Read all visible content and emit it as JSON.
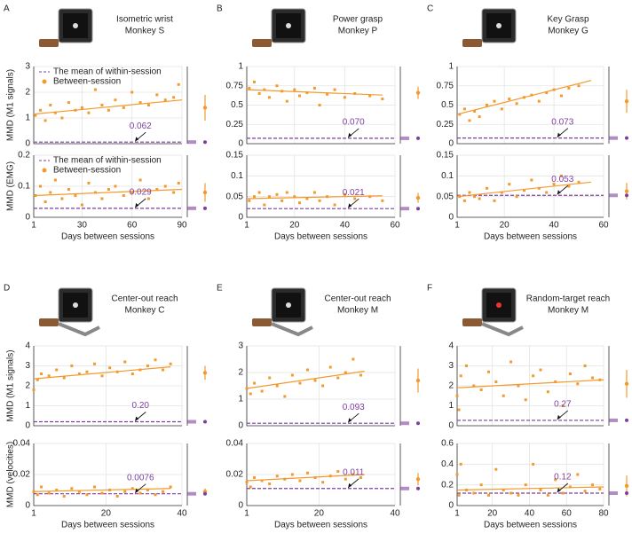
{
  "panels": [
    {
      "letter": "A",
      "title": "Isometric wrist",
      "subtitle": "Monkey S"
    },
    {
      "letter": "B",
      "title": "Power grasp",
      "subtitle": "Monkey P"
    },
    {
      "letter": "C",
      "title": "Key Grasp",
      "subtitle": "Monkey G"
    },
    {
      "letter": "D",
      "title": "Center-out reach",
      "subtitle": "Monkey C"
    },
    {
      "letter": "E",
      "title": "Center-out reach",
      "subtitle": "Monkey M"
    },
    {
      "letter": "F",
      "title": "Random-target reach",
      "subtitle": "Monkey M"
    }
  ],
  "chart_data": [
    {
      "type": "scatter",
      "ylabel": "MMD (M1 signals)",
      "legend": [
        "The mean of within-session",
        "Between-session"
      ],
      "color": "#f39a2e",
      "within_color": "#7d3f9e",
      "xlim": [
        1,
        90
      ],
      "xticks": [
        1,
        30,
        60,
        90
      ],
      "ylim": [
        0,
        3
      ],
      "yticks": [
        0,
        1,
        2,
        3
      ],
      "x": [
        2,
        5,
        8,
        11,
        14,
        18,
        22,
        26,
        30,
        34,
        38,
        42,
        46,
        50,
        55,
        60,
        65,
        70,
        75,
        80,
        85,
        88
      ],
      "y": [
        1.1,
        1.3,
        0.9,
        1.5,
        1.2,
        1.0,
        1.6,
        1.3,
        1.4,
        1.2,
        2.1,
        1.5,
        1.3,
        1.7,
        1.4,
        2.0,
        1.6,
        1.5,
        1.9,
        1.7,
        1.8,
        2.3
      ],
      "fit_x": [
        1,
        90
      ],
      "fit_y": [
        1.15,
        1.7
      ],
      "within": 0.062,
      "within_label": "0.062",
      "between_mean": 1.4,
      "between_sd": 0.5
    },
    {
      "type": "scatter",
      "ylabel": "MMD (EMG)",
      "xlabel": "Days between sessions",
      "legend": [
        "The mean of within-session",
        "Between-session"
      ],
      "color": "#f39a2e",
      "within_color": "#7d3f9e",
      "xlim": [
        1,
        90
      ],
      "xticks": [
        1,
        30,
        60,
        90
      ],
      "ylim": [
        0,
        0.2
      ],
      "yticks": [
        0,
        0.1,
        0.2
      ],
      "x": [
        2,
        5,
        8,
        11,
        14,
        18,
        22,
        26,
        30,
        34,
        38,
        42,
        46,
        50,
        55,
        60,
        65,
        70,
        75,
        80,
        85,
        88
      ],
      "y": [
        0.07,
        0.1,
        0.05,
        0.08,
        0.12,
        0.06,
        0.09,
        0.07,
        0.04,
        0.11,
        0.08,
        0.06,
        0.09,
        0.1,
        0.07,
        0.08,
        0.12,
        0.06,
        0.09,
        0.1,
        0.08,
        0.11
      ],
      "fit_x": [
        1,
        90
      ],
      "fit_y": [
        0.07,
        0.09
      ],
      "within": 0.029,
      "within_label": "0.029",
      "between_mean": 0.08,
      "between_sd": 0.03
    },
    {
      "type": "scatter",
      "color": "#f39a2e",
      "within_color": "#7d3f9e",
      "xlim": [
        1,
        60
      ],
      "xticks": [
        1,
        20,
        40,
        60
      ],
      "ylim": [
        0,
        1
      ],
      "yticks": [
        0,
        0.25,
        0.5,
        0.75,
        1
      ],
      "x": [
        2,
        4,
        6,
        8,
        10,
        13,
        15,
        17,
        20,
        22,
        25,
        28,
        30,
        33,
        36,
        40,
        44,
        50,
        55
      ],
      "y": [
        0.72,
        0.8,
        0.65,
        0.7,
        0.6,
        0.75,
        0.68,
        0.55,
        0.7,
        0.62,
        0.66,
        0.72,
        0.5,
        0.64,
        0.7,
        0.6,
        0.65,
        0.62,
        0.58
      ],
      "fit_x": [
        1,
        55
      ],
      "fit_y": [
        0.7,
        0.63
      ],
      "within": 0.07,
      "within_label": "0.070",
      "between_mean": 0.66,
      "between_sd": 0.08
    },
    {
      "type": "scatter",
      "xlabel": "Days between sessions",
      "color": "#f39a2e",
      "within_color": "#7d3f9e",
      "xlim": [
        1,
        60
      ],
      "xticks": [
        1,
        20,
        40,
        60
      ],
      "ylim": [
        0,
        0.15
      ],
      "yticks": [
        0,
        0.05,
        0.1,
        0.15
      ],
      "x": [
        2,
        4,
        6,
        8,
        10,
        13,
        15,
        17,
        20,
        22,
        25,
        28,
        30,
        33,
        36,
        40,
        44,
        50,
        55
      ],
      "y": [
        0.04,
        0.05,
        0.06,
        0.03,
        0.05,
        0.055,
        0.04,
        0.06,
        0.05,
        0.035,
        0.045,
        0.06,
        0.04,
        0.05,
        0.03,
        0.055,
        0.045,
        0.05,
        0.04
      ],
      "fit_x": [
        1,
        55
      ],
      "fit_y": [
        0.045,
        0.052
      ],
      "within": 0.021,
      "within_label": "0.021",
      "between_mean": 0.047,
      "between_sd": 0.012
    },
    {
      "type": "scatter",
      "color": "#f39a2e",
      "within_color": "#7d3f9e",
      "xlim": [
        1,
        60
      ],
      "xticks": [
        1,
        20,
        40,
        60
      ],
      "ylim": [
        0,
        1
      ],
      "yticks": [
        0,
        0.25,
        0.5,
        0.75,
        1
      ],
      "x": [
        2,
        4,
        6,
        8,
        10,
        13,
        16,
        19,
        22,
        25,
        28,
        31,
        34,
        37,
        40,
        43,
        46,
        50
      ],
      "y": [
        0.38,
        0.45,
        0.3,
        0.42,
        0.35,
        0.5,
        0.55,
        0.45,
        0.58,
        0.52,
        0.6,
        0.63,
        0.55,
        0.66,
        0.7,
        0.62,
        0.72,
        0.75
      ],
      "fit_x": [
        1,
        55
      ],
      "fit_y": [
        0.38,
        0.82
      ],
      "within": 0.073,
      "within_label": "0.073",
      "between_mean": 0.55,
      "between_sd": 0.15
    },
    {
      "type": "scatter",
      "xlabel": "Days between sessions",
      "color": "#f39a2e",
      "within_color": "#7d3f9e",
      "xlim": [
        1,
        60
      ],
      "xticks": [
        1,
        20,
        40,
        60
      ],
      "ylim": [
        0,
        0.15
      ],
      "yticks": [
        0,
        0.05,
        0.1,
        0.15
      ],
      "x": [
        2,
        4,
        6,
        8,
        10,
        13,
        16,
        19,
        22,
        25,
        28,
        31,
        34,
        37,
        40,
        43,
        46,
        50
      ],
      "y": [
        0.05,
        0.04,
        0.06,
        0.05,
        0.045,
        0.07,
        0.04,
        0.06,
        0.08,
        0.05,
        0.065,
        0.09,
        0.07,
        0.06,
        0.08,
        0.1,
        0.075,
        0.085
      ],
      "fit_x": [
        1,
        55
      ],
      "fit_y": [
        0.05,
        0.085
      ],
      "within": 0.053,
      "within_label": "0.053",
      "between_mean": 0.063,
      "between_sd": 0.02
    },
    {
      "type": "scatter",
      "ylabel": "MMD (M1 signals)",
      "color": "#f39a2e",
      "within_color": "#7d3f9e",
      "xlim": [
        1,
        40
      ],
      "xticks": [
        1,
        20,
        40
      ],
      "ylim": [
        0,
        4
      ],
      "yticks": [
        0,
        1,
        2,
        3,
        4
      ],
      "x": [
        1,
        2,
        3,
        5,
        7,
        9,
        11,
        13,
        15,
        17,
        19,
        21,
        23,
        25,
        27,
        29,
        31,
        33,
        35,
        37
      ],
      "y": [
        1.8,
        2.3,
        2.6,
        2.5,
        2.8,
        2.4,
        3.0,
        2.6,
        2.7,
        3.1,
        2.5,
        2.9,
        2.7,
        3.2,
        2.6,
        2.8,
        3.0,
        3.3,
        2.8,
        3.1
      ],
      "fit_x": [
        1,
        37
      ],
      "fit_y": [
        2.35,
        2.95
      ],
      "within": 0.2,
      "within_label": "0.20",
      "between_mean": 2.65,
      "between_sd": 0.35
    },
    {
      "type": "scatter",
      "ylabel": "MMD (velocities)",
      "xlabel": "Days between sessions",
      "color": "#f39a2e",
      "within_color": "#7d3f9e",
      "xlim": [
        1,
        40
      ],
      "xticks": [
        1,
        20,
        40
      ],
      "ylim": [
        0,
        0.04
      ],
      "yticks": [
        0,
        0.02,
        0.04
      ],
      "x": [
        1,
        2,
        3,
        5,
        7,
        9,
        11,
        13,
        15,
        17,
        19,
        21,
        23,
        25,
        27,
        29,
        31,
        33,
        35,
        37
      ],
      "y": [
        0.009,
        0.007,
        0.012,
        0.008,
        0.01,
        0.006,
        0.011,
        0.009,
        0.007,
        0.012,
        0.008,
        0.01,
        0.006,
        0.009,
        0.011,
        0.008,
        0.01,
        0.007,
        0.009,
        0.012
      ],
      "fit_x": [
        1,
        37
      ],
      "fit_y": [
        0.009,
        0.011
      ],
      "within": 0.0076,
      "within_label": "0.0076",
      "between_mean": 0.009,
      "between_sd": 0.002
    },
    {
      "type": "scatter",
      "color": "#f39a2e",
      "within_color": "#7d3f9e",
      "xlim": [
        1,
        40
      ],
      "xticks": [
        1,
        20,
        40
      ],
      "ylim": [
        0,
        3
      ],
      "yticks": [
        0,
        1,
        2,
        3
      ],
      "x": [
        1,
        2,
        3,
        5,
        7,
        9,
        11,
        13,
        15,
        17,
        19,
        21,
        23,
        25,
        27,
        29,
        31
      ],
      "y": [
        1.4,
        1.2,
        1.6,
        1.3,
        1.8,
        1.5,
        1.1,
        1.9,
        1.6,
        2.1,
        1.7,
        1.5,
        2.2,
        1.8,
        2.0,
        2.5,
        1.9
      ],
      "fit_x": [
        1,
        32
      ],
      "fit_y": [
        1.4,
        2.05
      ],
      "within": 0.093,
      "within_label": "0.093",
      "between_mean": 1.7,
      "between_sd": 0.45
    },
    {
      "type": "scatter",
      "xlabel": "Days between sessions",
      "color": "#f39a2e",
      "within_color": "#7d3f9e",
      "xlim": [
        1,
        40
      ],
      "xticks": [
        1,
        20,
        40
      ],
      "ylim": [
        0,
        0.04
      ],
      "yticks": [
        0,
        0.02,
        0.04
      ],
      "x": [
        1,
        2,
        3,
        5,
        7,
        9,
        11,
        13,
        15,
        17,
        19,
        21,
        23,
        25,
        27,
        29,
        31
      ],
      "y": [
        0.015,
        0.012,
        0.018,
        0.016,
        0.014,
        0.019,
        0.017,
        0.02,
        0.016,
        0.021,
        0.018,
        0.015,
        0.019,
        0.022,
        0.017,
        0.02,
        0.018
      ],
      "fit_x": [
        1,
        32
      ],
      "fit_y": [
        0.016,
        0.02
      ],
      "within": 0.011,
      "within_label": "0.011",
      "between_mean": 0.017,
      "between_sd": 0.004
    },
    {
      "type": "scatter",
      "color": "#f39a2e",
      "within_color": "#7d3f9e",
      "xlim": [
        1,
        80
      ],
      "xticks": [
        1,
        20,
        40,
        60,
        80
      ],
      "ylim": [
        0,
        4
      ],
      "yticks": [
        0,
        1,
        2,
        3,
        4
      ],
      "x": [
        1,
        2,
        3,
        6,
        10,
        14,
        18,
        22,
        26,
        30,
        34,
        38,
        42,
        46,
        50,
        54,
        58,
        62,
        66,
        70,
        74,
        78
      ],
      "y": [
        1.5,
        0.8,
        2.5,
        3.0,
        2.0,
        1.8,
        2.7,
        2.2,
        1.5,
        3.2,
        2.0,
        1.3,
        2.5,
        2.8,
        1.7,
        2.2,
        1.0,
        2.6,
        2.1,
        3.0,
        2.4,
        2.3
      ],
      "fit_x": [
        1,
        80
      ],
      "fit_y": [
        1.9,
        2.3
      ],
      "within": 0.27,
      "within_label": "0.27",
      "between_mean": 2.1,
      "between_sd": 0.7
    },
    {
      "type": "scatter",
      "xlabel": "Days between sessions",
      "color": "#f39a2e",
      "within_color": "#7d3f9e",
      "xlim": [
        1,
        80
      ],
      "xticks": [
        1,
        20,
        40,
        60,
        80
      ],
      "ylim": [
        0,
        0.6
      ],
      "yticks": [
        0,
        0.2,
        0.4,
        0.6
      ],
      "x": [
        1,
        2,
        3,
        6,
        10,
        14,
        18,
        22,
        26,
        30,
        34,
        38,
        42,
        46,
        50,
        54,
        58,
        62,
        66,
        70,
        74,
        78
      ],
      "y": [
        0.3,
        0.1,
        0.4,
        0.15,
        0.12,
        0.2,
        0.1,
        0.35,
        0.15,
        0.12,
        0.1,
        0.2,
        0.4,
        0.15,
        0.1,
        0.25,
        0.12,
        0.18,
        0.3,
        0.14,
        0.2,
        0.16
      ],
      "fit_x": [
        1,
        80
      ],
      "fit_y": [
        0.15,
        0.18
      ],
      "within": 0.12,
      "within_label": "0.12",
      "between_mean": 0.19,
      "between_sd": 0.1
    }
  ]
}
